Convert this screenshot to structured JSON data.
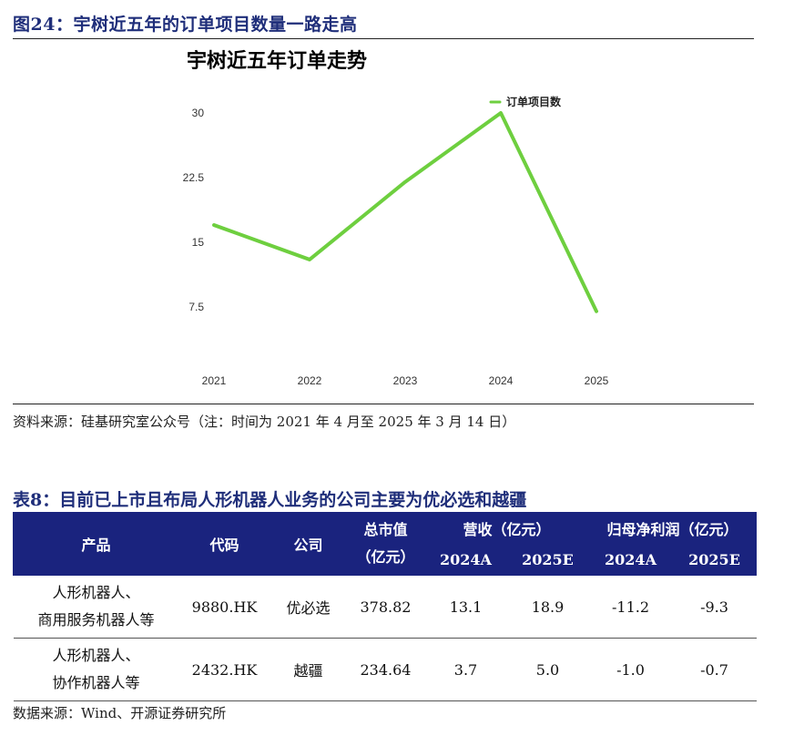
{
  "figure": {
    "label": "图24：宇树近五年的订单项目数量一路走高",
    "source": "资料来源：硅基研究室公众号（注：时间为 2021 年 4 月至 2025 年 3 月 14 日）"
  },
  "chart_data": {
    "type": "line",
    "title": "宇树近五年订单走势",
    "categories": [
      "2021",
      "2022",
      "2023",
      "2024",
      "2025"
    ],
    "series": [
      {
        "name": "订单项目数",
        "values": [
          17,
          13,
          22,
          30,
          7
        ],
        "color": "#6ecf3f"
      }
    ],
    "y_ticks": [
      "7.5",
      "15",
      "22.5",
      "30"
    ],
    "y_tick_values": [
      7.5,
      15,
      22.5,
      30
    ],
    "ylim": [
      0,
      30
    ],
    "grid": false,
    "legend_position": "top-right"
  },
  "table": {
    "label": "表8：目前已上市且布局人形机器人业务的公司主要为优必选和越疆",
    "headers": {
      "product": "产品",
      "code": "代码",
      "company": "公司",
      "market_cap_line1": "总市值",
      "market_cap_line2": "（亿元）",
      "revenue": "营收（亿元）",
      "net_profit": "归母净利润（亿元）",
      "rev_2024": "2024A",
      "rev_2025": "2025E",
      "np_2024": "2024A",
      "np_2025": "2025E"
    },
    "rows": [
      {
        "product_line1": "人形机器人、",
        "product_line2": "商用服务机器人等",
        "code": "9880.HK",
        "company": "优必选",
        "market_cap": "378.82",
        "rev_2024": "13.1",
        "rev_2025": "18.9",
        "np_2024": "-11.2",
        "np_2025": "-9.3"
      },
      {
        "product_line1": "人形机器人、",
        "product_line2": "协作机器人等",
        "code": "2432.HK",
        "company": "越疆",
        "market_cap": "234.64",
        "rev_2024": "3.7",
        "rev_2025": "5.0",
        "np_2024": "-1.0",
        "np_2025": "-0.7"
      }
    ],
    "source": "数据来源：Wind、开源证券研究所"
  }
}
